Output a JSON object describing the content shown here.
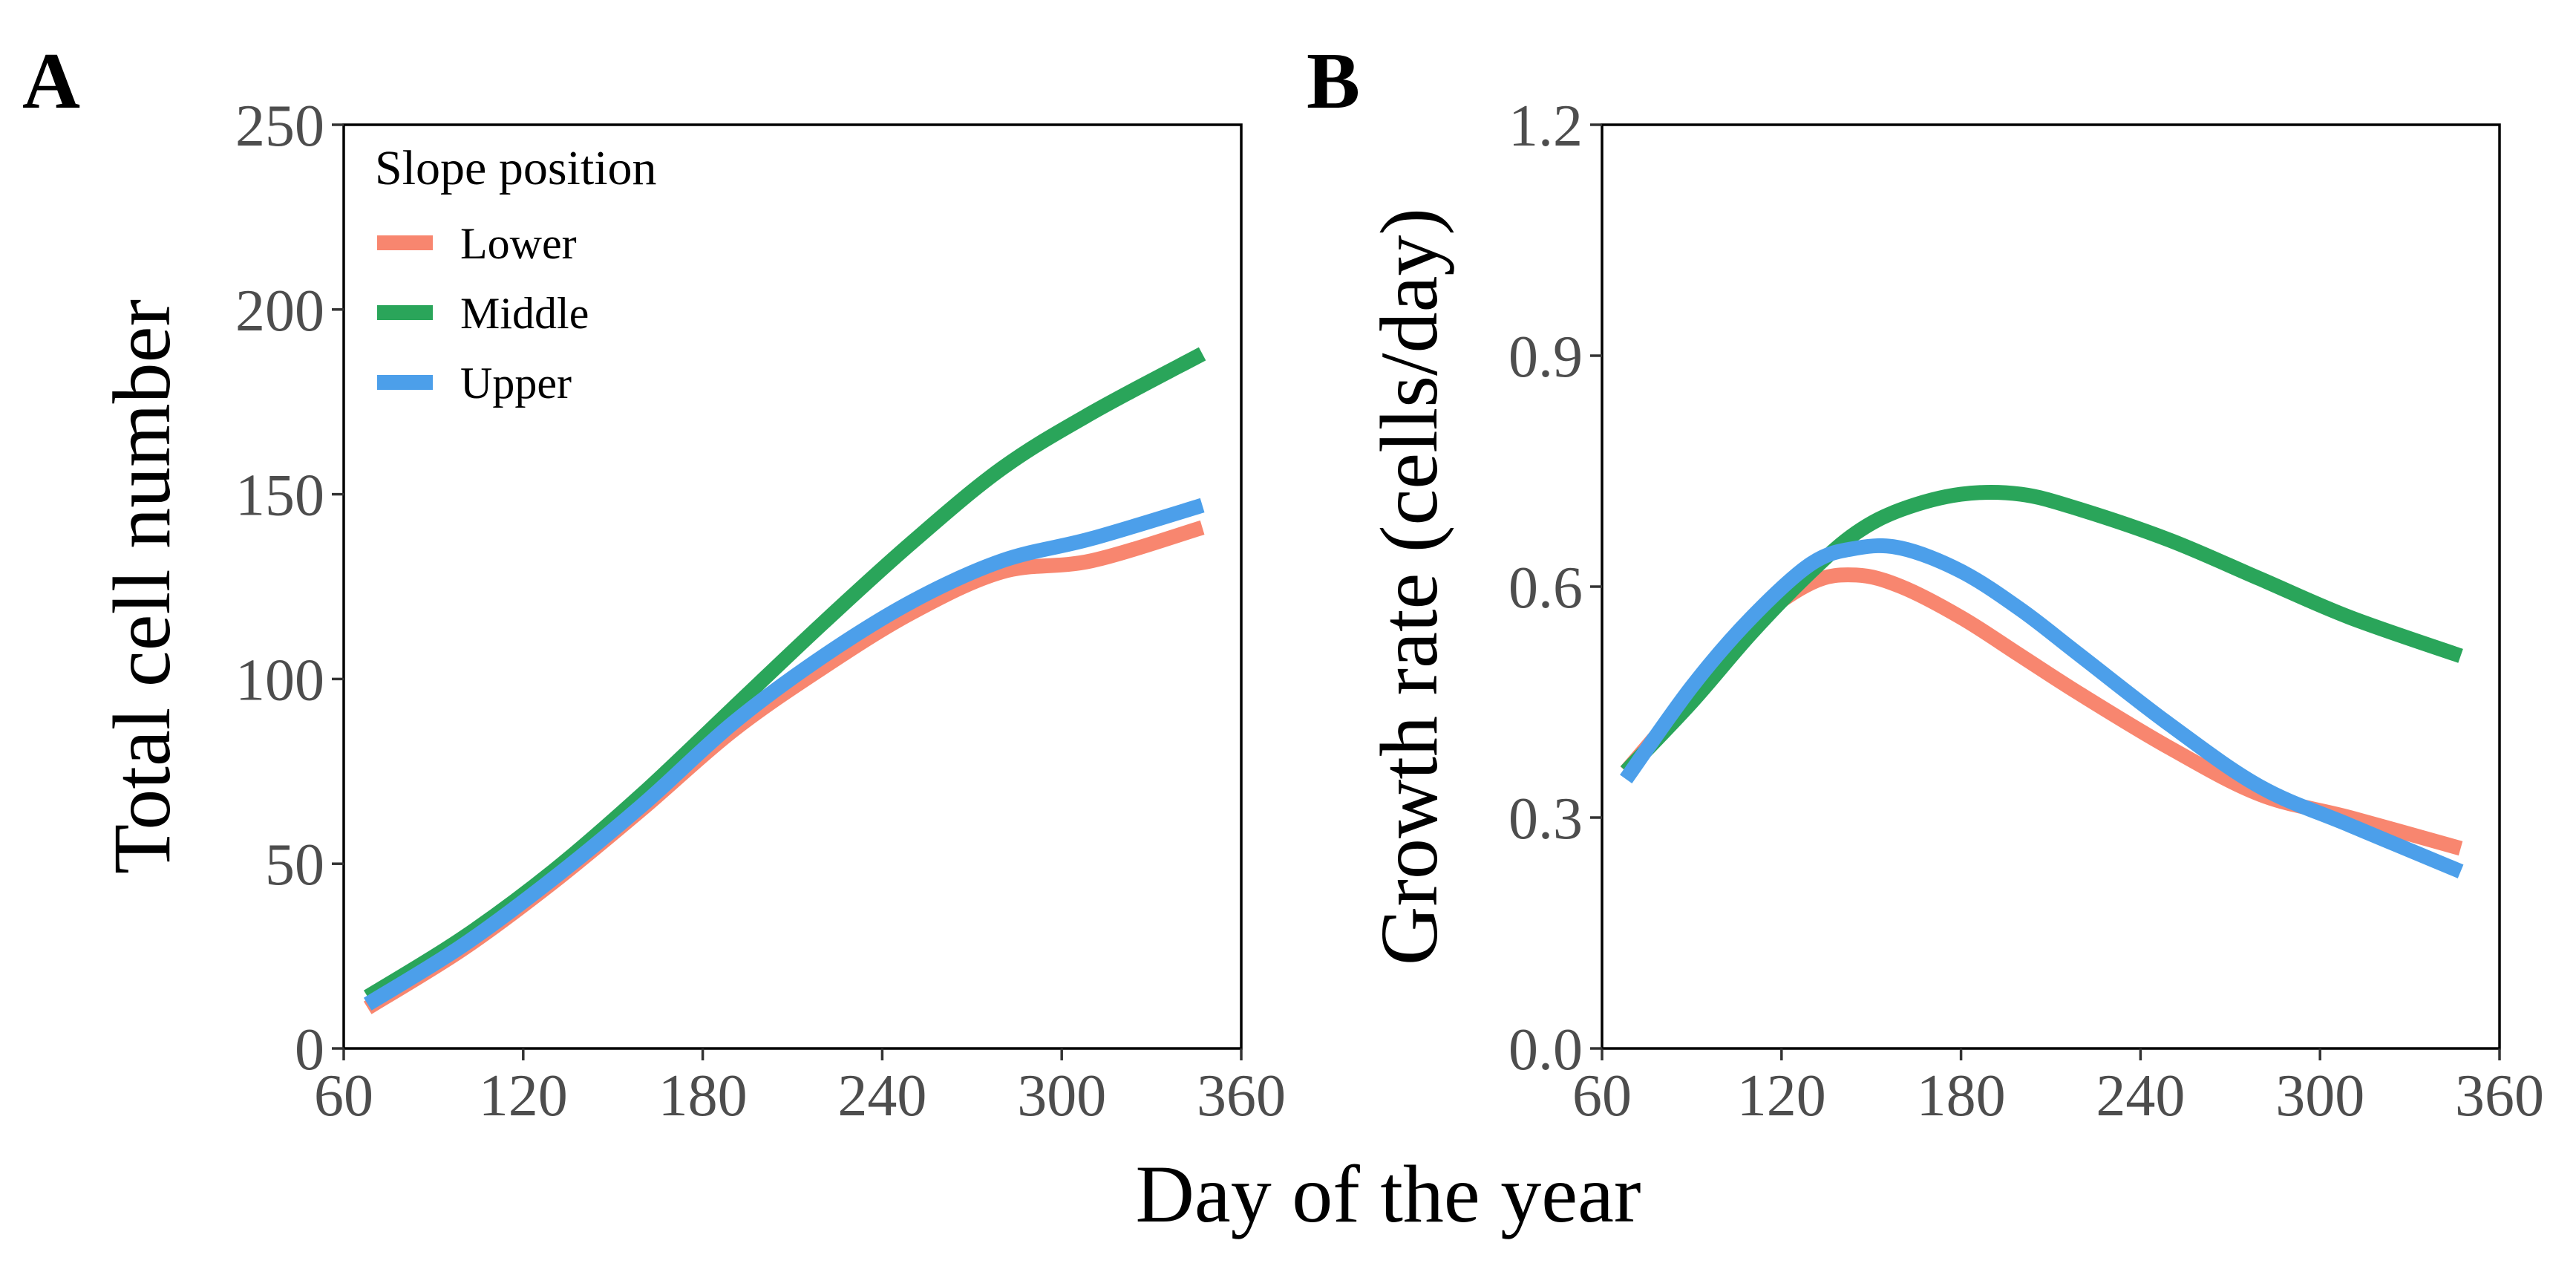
{
  "figure": {
    "xlabel_shared": "Day of the year"
  },
  "legend": {
    "title": "Slope position",
    "entries": [
      {
        "name": "Lower",
        "color": "#F8866F"
      },
      {
        "name": "Middle",
        "color": "#2AA55A"
      },
      {
        "name": "Upper",
        "color": "#4C9FEA"
      }
    ]
  },
  "chart_data": [
    {
      "panel": "A",
      "type": "line",
      "title": "",
      "xlabel": "Day of the year",
      "ylabel": "Total cell number",
      "xlim": [
        60,
        360
      ],
      "ylim": [
        0,
        250
      ],
      "xticks": [
        60,
        120,
        180,
        240,
        300,
        360
      ],
      "yticks": [
        0,
        50,
        100,
        150,
        200,
        250
      ],
      "grid": false,
      "legend_position": "top-left",
      "x": [
        68,
        100,
        130,
        160,
        190,
        220,
        250,
        280,
        310,
        347
      ],
      "series": [
        {
          "name": "Lower",
          "color": "#F8866F",
          "values": [
            11,
            27,
            45,
            65,
            86,
            103,
            118,
            129,
            132,
            141
          ]
        },
        {
          "name": "Middle",
          "color": "#2AA55A",
          "values": [
            14,
            30,
            48,
            69,
            92,
            115,
            137,
            157,
            172,
            188
          ]
        },
        {
          "name": "Upper",
          "color": "#4C9FEA",
          "values": [
            12,
            28,
            46,
            66,
            88,
            106,
            121,
            132,
            138,
            147
          ]
        }
      ]
    },
    {
      "panel": "B",
      "type": "line",
      "title": "",
      "xlabel": "Day of the year",
      "ylabel": "Growth rate (cells/day)",
      "xlim": [
        60,
        360
      ],
      "ylim": [
        0.0,
        1.2
      ],
      "xticks": [
        60,
        120,
        180,
        240,
        300,
        360
      ],
      "yticks": [
        "0.0",
        "0.3",
        "0.6",
        "0.9",
        "1.2"
      ],
      "grid": false,
      "x": [
        68,
        90,
        110,
        130,
        145,
        160,
        180,
        200,
        220,
        250,
        280,
        310,
        347
      ],
      "series": [
        {
          "name": "Lower",
          "color": "#F8866F",
          "values": [
            0.36,
            0.46,
            0.55,
            0.605,
            0.615,
            0.6,
            0.56,
            0.51,
            0.46,
            0.39,
            0.33,
            0.3,
            0.26
          ]
        },
        {
          "name": "Middle",
          "color": "#2AA55A",
          "values": [
            0.36,
            0.45,
            0.54,
            0.62,
            0.67,
            0.7,
            0.72,
            0.72,
            0.7,
            0.66,
            0.61,
            0.56,
            0.51
          ]
        },
        {
          "name": "Upper",
          "color": "#4C9FEA",
          "values": [
            0.35,
            0.47,
            0.56,
            0.63,
            0.65,
            0.65,
            0.62,
            0.57,
            0.51,
            0.42,
            0.34,
            0.29,
            0.23
          ]
        }
      ]
    }
  ]
}
